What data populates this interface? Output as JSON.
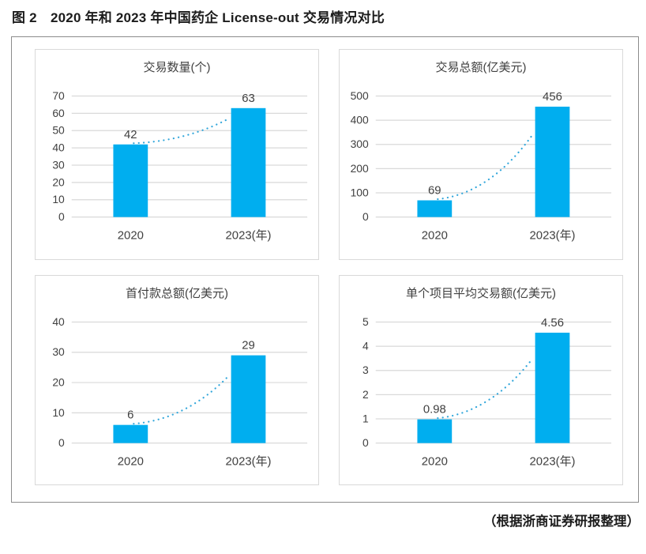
{
  "figure": {
    "title": "图 2　2020 年和 2023 年中国药企 License-out 交易情况对比",
    "source_note": "（根据浙商证券研报整理）"
  },
  "style": {
    "bar_color": "#00AEEF",
    "trend_color": "#33A7DB",
    "gridline_color": "#D9D9D9",
    "panel_border_color": "#D9D9D9",
    "board_border_color": "#8C8C8C",
    "axis_text_color": "#404040",
    "title_text_color": "#1C1C1C"
  },
  "chart_data": [
    {
      "id": "transaction-count",
      "type": "bar",
      "title": "交易数量(个)",
      "categories": [
        "2020",
        "2023(年)"
      ],
      "values": [
        42,
        63
      ],
      "value_labels": [
        "42",
        "63"
      ],
      "ylim": [
        0,
        70
      ],
      "yticks": [
        0,
        10,
        20,
        30,
        40,
        50,
        60,
        70
      ],
      "grid": true,
      "legend": false,
      "trendline": "dotted"
    },
    {
      "id": "transaction-total-value",
      "type": "bar",
      "title": "交易总额(亿美元)",
      "categories": [
        "2020",
        "2023(年)"
      ],
      "values": [
        69,
        456
      ],
      "value_labels": [
        "69",
        "456"
      ],
      "ylim": [
        0,
        500
      ],
      "yticks": [
        0,
        100,
        200,
        300,
        400,
        500
      ],
      "grid": true,
      "legend": false,
      "trendline": "dotted"
    },
    {
      "id": "upfront-payment-total",
      "type": "bar",
      "title": "首付款总额(亿美元)",
      "categories": [
        "2020",
        "2023(年)"
      ],
      "values": [
        6,
        29
      ],
      "value_labels": [
        "6",
        "29"
      ],
      "ylim": [
        0,
        40
      ],
      "yticks": [
        0,
        10,
        20,
        30,
        40
      ],
      "grid": true,
      "legend": false,
      "trendline": "dotted"
    },
    {
      "id": "average-deal-size",
      "type": "bar",
      "title": "单个项目平均交易额(亿美元)",
      "categories": [
        "2020",
        "2023(年)"
      ],
      "values": [
        0.98,
        4.56
      ],
      "value_labels": [
        "0.98",
        "4.56"
      ],
      "ylim": [
        0,
        5
      ],
      "yticks": [
        0,
        1,
        2,
        3,
        4,
        5
      ],
      "grid": true,
      "legend": false,
      "trendline": "dotted"
    }
  ]
}
